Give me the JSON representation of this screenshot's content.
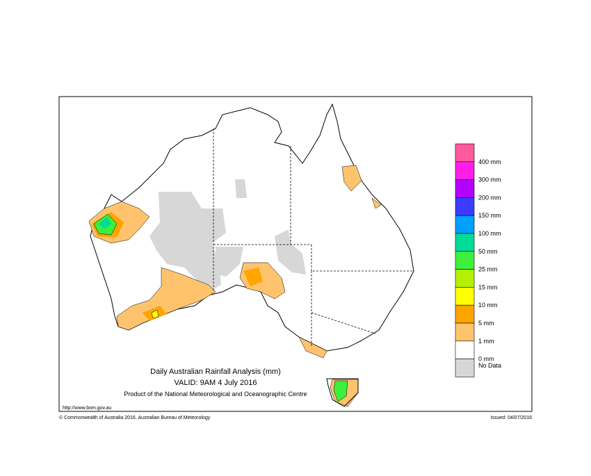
{
  "map": {
    "title": "Daily Australian Rainfall Analysis (mm)",
    "valid": "VALID: 9AM  4 July 2016",
    "product": "Product of the National Meteorological and Oceanographic Centre",
    "url": "http://www.bom.gov.au",
    "copyright": "© Commonwealth of Australia 2016, Australian Bureau of Meteorology",
    "issued": "Issued: 04/07/2016"
  },
  "legend": {
    "colors": [
      "#ff5a9e",
      "#ff1ee6",
      "#b400ff",
      "#3c3cff",
      "#00a0ff",
      "#00dc96",
      "#3cf03c",
      "#b4f000",
      "#ffff00",
      "#ffa500",
      "#ffc36e",
      "#ffffff",
      "#d7d7d7"
    ],
    "labels": [
      "400 mm",
      "300 mm",
      "200 mm",
      "150 mm",
      "100 mm",
      "50 mm",
      "25 mm",
      "15 mm",
      "10 mm",
      "5 mm",
      "1 mm",
      "0 mm",
      "No Data"
    ]
  }
}
